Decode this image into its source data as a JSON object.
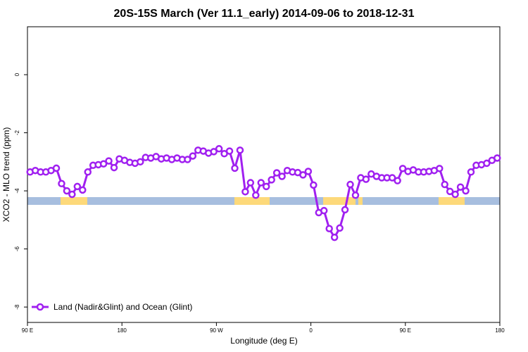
{
  "chart_data": {
    "type": "line",
    "title": "20S-15S March (Ver 11.1_early)   2014-09-06 to 2018-12-31",
    "xlabel": "Longitude (deg E)",
    "ylabel": "XCO2 - MLO trend (ppm)",
    "xlim": [
      90,
      540
    ],
    "ylim": [
      -8.53,
      1.65
    ],
    "xticks": [
      {
        "value": 90,
        "label": "90 E"
      },
      180,
      {
        "value": 270,
        "label": "90 W"
      },
      {
        "value": 360,
        "label": "0"
      },
      {
        "value": 450,
        "label": "90 E"
      },
      {
        "value": 540,
        "label": "180"
      }
    ],
    "yticks": [
      0,
      -2,
      -4,
      -6,
      -8
    ],
    "legend": "bottom-left",
    "x": [
      92.5,
      97.5,
      102.5,
      107.5,
      112.5,
      117.5,
      122.5,
      127.5,
      132.5,
      137.5,
      142.5,
      147.5,
      152.5,
      157.5,
      162.5,
      167.5,
      172.5,
      177.5,
      182.5,
      187.5,
      192.5,
      197.5,
      202.5,
      207.5,
      212.5,
      217.5,
      222.5,
      227.5,
      232.5,
      237.5,
      242.5,
      247.5,
      252.5,
      257.5,
      262.5,
      267.5,
      272.5,
      277.5,
      282.5,
      287.5,
      292.5,
      297.5,
      302.5,
      307.5,
      312.5,
      317.5,
      322.5,
      327.5,
      332.5,
      337.5,
      342.5,
      347.5,
      352.5,
      357.5,
      362.5,
      367.5,
      372.5,
      377.5,
      382.5,
      387.5,
      392.5,
      397.5,
      402.5,
      407.5,
      412.5,
      417.5,
      422.5,
      427.5,
      432.5,
      437.5,
      442.5,
      447.5,
      452.5,
      457.5,
      462.5,
      467.5,
      472.5,
      477.5,
      482.5,
      487.5,
      492.5,
      497.5,
      502.5,
      507.5,
      512.5,
      517.5,
      522.5,
      527.5,
      532.5,
      537.5
    ],
    "series": [
      {
        "name": "Land (Nadir&Glint) and Ocean (Glint)",
        "color": "#a020f0",
        "values": [
          -3.35,
          -3.3,
          -3.35,
          -3.35,
          -3.3,
          -3.22,
          -3.75,
          -4.0,
          -4.12,
          -3.85,
          -3.97,
          -3.35,
          -3.12,
          -3.1,
          -3.07,
          -2.97,
          -3.2,
          -2.9,
          -2.95,
          -3.02,
          -3.05,
          -3.0,
          -2.85,
          -2.87,
          -2.82,
          -2.9,
          -2.87,
          -2.92,
          -2.87,
          -2.92,
          -2.92,
          -2.8,
          -2.6,
          -2.63,
          -2.7,
          -2.65,
          -2.55,
          -2.72,
          -2.63,
          -3.22,
          -2.6,
          -4.03,
          -3.72,
          -4.15,
          -3.72,
          -3.85,
          -3.62,
          -3.38,
          -3.5,
          -3.3,
          -3.35,
          -3.37,
          -3.45,
          -3.33,
          -3.8,
          -4.75,
          -4.68,
          -5.3,
          -5.6,
          -5.28,
          -4.65,
          -3.78,
          -4.15,
          -3.55,
          -3.6,
          -3.42,
          -3.5,
          -3.55,
          -3.55,
          -3.55,
          -3.65,
          -3.23,
          -3.33,
          -3.28,
          -3.35,
          -3.35,
          -3.33,
          -3.3,
          -3.23,
          -3.78,
          -4.02,
          -4.12,
          -3.87,
          -4.0,
          -3.35,
          -3.12,
          -3.1,
          -3.05,
          -2.95,
          -2.87
        ]
      }
    ]
  }
}
